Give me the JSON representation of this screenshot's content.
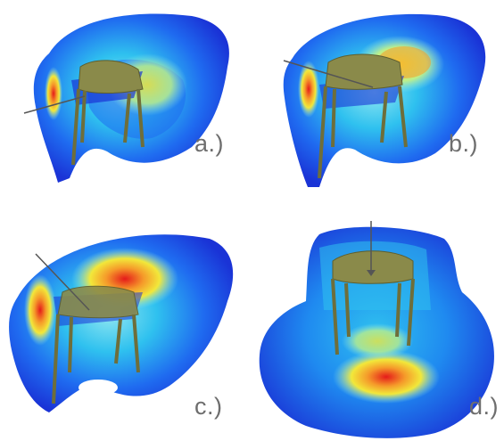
{
  "figure": {
    "panels": [
      {
        "label": "a.)"
      },
      {
        "label": "b.)"
      },
      {
        "label": "c.)"
      },
      {
        "label": "d.)"
      }
    ]
  },
  "colors": {
    "outer": "#1a33d6",
    "blue": "#1f6bf0",
    "cyan": "#2fc1ef",
    "light_cyan": "#8fe6f0",
    "yellow": "#f2e83a",
    "orange": "#f59a2a",
    "red": "#e51a1a",
    "structure": "#8a8a4a"
  }
}
